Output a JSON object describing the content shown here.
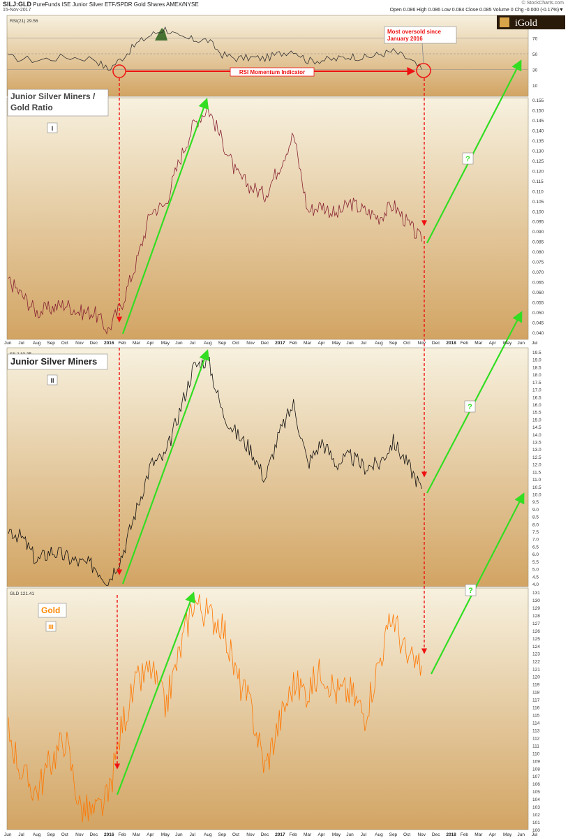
{
  "header": {
    "symbol": "SILJ:GLD",
    "description": "PureFunds ISE Junior Silver ETF/SPDR Gold Shares AMEX/NYSE",
    "date": "15-Nov-2017",
    "quote": "Open 0.086  High 0.086  Low 0.084  Close 0.085  Volume 0  Chg -0.000 (-0.17%)▼",
    "source": "© StockCharts.com"
  },
  "logo": {
    "text": "iGold",
    "bg": "#2a1a0a",
    "fg": "#ffffff"
  },
  "colors": {
    "panel_top": "#f7f1df",
    "panel_bottom": "#d2a463",
    "green_arrow": "#33dd22",
    "red": "#ee1111",
    "gold_line": "#ff7700",
    "ratio_line": "#882233",
    "silj_line": "#111111",
    "rsi_line": "#333333",
    "rsi_fill": "#336622"
  },
  "chart_data": [
    {
      "type": "line",
      "panel": "rsi",
      "legend": "RSI(21) 29.56",
      "yticks": [
        10,
        30,
        50,
        70,
        90
      ],
      "ylim": [
        0,
        100
      ],
      "reference_lines": [
        30,
        50,
        70
      ],
      "series": [
        {
          "name": "RSI(21)",
          "x": [
            "2015-06",
            "2015-08",
            "2015-10",
            "2015-12",
            "2016-01",
            "2016-02",
            "2016-03",
            "2016-04",
            "2016-05",
            "2016-06",
            "2016-07",
            "2016-08",
            "2016-09",
            "2016-10",
            "2016-11",
            "2016-12",
            "2017-01",
            "2017-02",
            "2017-03",
            "2017-04",
            "2017-05",
            "2017-06",
            "2017-07",
            "2017-08",
            "2017-09",
            "2017-10",
            "2017-11"
          ],
          "values": [
            45,
            42,
            46,
            44,
            30,
            45,
            63,
            74,
            82,
            70,
            68,
            67,
            49,
            44,
            45,
            44,
            50,
            55,
            41,
            42,
            43,
            47,
            45,
            49,
            53,
            44,
            30
          ]
        }
      ],
      "annotations": [
        "Most oversold since January 2016",
        "RSI Momentum Indicator"
      ]
    },
    {
      "type": "line",
      "panel": "ratio",
      "title": "Junior Silver Miners  /  Gold Ratio",
      "label": "I",
      "ylim": [
        0.035,
        0.155
      ],
      "yticks": [
        0.04,
        0.045,
        0.05,
        0.055,
        0.06,
        0.065,
        0.07,
        0.075,
        0.08,
        0.085,
        0.09,
        0.095,
        0.1,
        0.105,
        0.11,
        0.115,
        0.12,
        0.125,
        0.13,
        0.135,
        0.14,
        0.145,
        0.15,
        0.155
      ],
      "xticks": [
        "Jun",
        "Jul",
        "Aug",
        "Sep",
        "Oct",
        "Nov",
        "Dec",
        "2016",
        "Feb",
        "Mar",
        "Apr",
        "May",
        "Jun",
        "Jul",
        "Aug",
        "Sep",
        "Oct",
        "Nov",
        "Dec",
        "2017",
        "Feb",
        "Mar",
        "Apr",
        "May",
        "Jun",
        "Jul",
        "Aug",
        "Sep",
        "Oct",
        "Nov",
        "Dec",
        "2018",
        "Feb",
        "Mar",
        "Apr",
        "May",
        "Jun",
        "Jul"
      ],
      "series": [
        {
          "name": "SILJ:GLD",
          "x": [
            "2015-06",
            "2015-07",
            "2015-08",
            "2015-09",
            "2015-10",
            "2015-11",
            "2015-12",
            "2016-01",
            "2016-02",
            "2016-03",
            "2016-04",
            "2016-05",
            "2016-06",
            "2016-07",
            "2016-08",
            "2016-09",
            "2016-10",
            "2016-11",
            "2016-12",
            "2017-01",
            "2017-02",
            "2017-03",
            "2017-04",
            "2017-05",
            "2017-06",
            "2017-07",
            "2017-08",
            "2017-09",
            "2017-10",
            "2017-11"
          ],
          "values": [
            0.066,
            0.058,
            0.05,
            0.052,
            0.054,
            0.05,
            0.05,
            0.041,
            0.055,
            0.075,
            0.1,
            0.103,
            0.125,
            0.143,
            0.151,
            0.135,
            0.118,
            0.112,
            0.108,
            0.122,
            0.138,
            0.1,
            0.103,
            0.098,
            0.104,
            0.1,
            0.097,
            0.103,
            0.094,
            0.085
          ]
        }
      ]
    },
    {
      "type": "line",
      "panel": "silj",
      "title": "Junior Silver Miners",
      "label": "II",
      "legend": "SILJ 10.35",
      "ylim": [
        3.7,
        19.7
      ],
      "yticks": [
        4.0,
        4.5,
        5.0,
        5.5,
        6.0,
        6.5,
        7.0,
        7.5,
        8.0,
        8.5,
        9.0,
        9.5,
        10.0,
        10.5,
        11.0,
        11.5,
        12.0,
        12.5,
        13.0,
        13.5,
        14.0,
        14.5,
        15.0,
        15.5,
        16.0,
        16.5,
        17.0,
        17.5,
        18.0,
        18.5,
        19.0,
        19.5
      ],
      "series": [
        {
          "name": "SILJ",
          "x": [
            "2015-06",
            "2015-07",
            "2015-08",
            "2015-09",
            "2015-10",
            "2015-11",
            "2015-12",
            "2016-01",
            "2016-02",
            "2016-03",
            "2016-04",
            "2016-05",
            "2016-06",
            "2016-07",
            "2016-08",
            "2016-09",
            "2016-10",
            "2016-11",
            "2016-12",
            "2017-01",
            "2017-02",
            "2017-03",
            "2017-04",
            "2017-05",
            "2017-06",
            "2017-07",
            "2017-08",
            "2017-09",
            "2017-10",
            "2017-11"
          ],
          "values": [
            7.7,
            7.0,
            5.5,
            6.2,
            5.8,
            5.4,
            5.2,
            4.2,
            6.0,
            9.0,
            12.0,
            12.5,
            15.5,
            18.5,
            19.0,
            15.5,
            14.0,
            13.0,
            11.0,
            14.0,
            16.0,
            12.0,
            13.5,
            12.0,
            12.5,
            11.8,
            12.0,
            13.5,
            12.0,
            10.35
          ]
        }
      ]
    },
    {
      "type": "line",
      "panel": "gld",
      "title": "Gold",
      "label": "III",
      "legend": "GLD 121.41",
      "ylim": [
        100,
        131.5
      ],
      "yticks": [
        100,
        101,
        102,
        103,
        104,
        105,
        106,
        107,
        108,
        109,
        110,
        111,
        112,
        113,
        114,
        115,
        116,
        117,
        118,
        119,
        120,
        121,
        122,
        123,
        124,
        125,
        126,
        127,
        128,
        129,
        130,
        131
      ],
      "xticks": [
        "Jun",
        "Jul",
        "Aug",
        "Sep",
        "Oct",
        "Nov",
        "Dec",
        "2016",
        "Feb",
        "Mar",
        "Apr",
        "May",
        "Jun",
        "Jul",
        "Aug",
        "Sep",
        "Oct",
        "Nov",
        "Dec",
        "2017",
        "Feb",
        "Mar",
        "Apr",
        "May",
        "Jun",
        "Jul",
        "Aug",
        "Sep",
        "Oct",
        "Nov",
        "Dec",
        "2018",
        "Feb",
        "Mar",
        "Apr",
        "May",
        "Jun",
        "Jul"
      ],
      "series": [
        {
          "name": "GLD",
          "x": [
            "2015-06",
            "2015-07",
            "2015-08",
            "2015-09",
            "2015-10",
            "2015-11",
            "2015-12",
            "2016-01",
            "2016-02",
            "2016-03",
            "2016-04",
            "2016-05",
            "2016-06",
            "2016-07",
            "2016-08",
            "2016-09",
            "2016-10",
            "2016-11",
            "2016-12",
            "2017-01",
            "2017-02",
            "2017-03",
            "2017-04",
            "2017-05",
            "2017-06",
            "2017-07",
            "2017-08",
            "2017-09",
            "2017-10",
            "2017-11"
          ],
          "values": [
            113,
            107,
            105,
            109,
            112,
            103,
            102,
            104,
            114,
            119,
            121,
            116,
            123,
            130,
            128,
            127,
            120,
            116,
            108,
            114,
            119,
            118,
            121,
            118,
            118,
            115,
            122,
            128,
            122,
            121.41
          ]
        }
      ]
    }
  ],
  "annotations": {
    "question_mark": "?"
  }
}
